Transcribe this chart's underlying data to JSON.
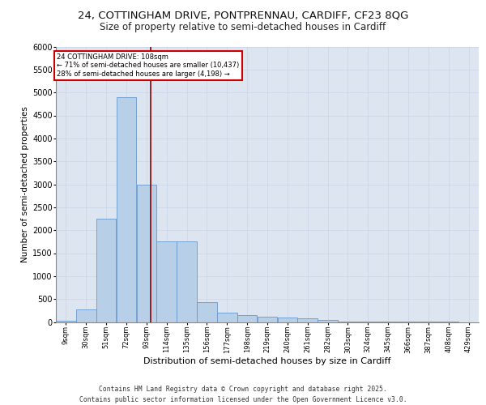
{
  "title1": "24, COTTINGHAM DRIVE, PONTPRENNAU, CARDIFF, CF23 8QG",
  "title2": "Size of property relative to semi-detached houses in Cardiff",
  "xlabel": "Distribution of semi-detached houses by size in Cardiff",
  "ylabel": "Number of semi-detached properties",
  "footer1": "Contains HM Land Registry data © Crown copyright and database right 2025.",
  "footer2": "Contains public sector information licensed under the Open Government Licence v3.0.",
  "bin_labels": [
    "9sqm",
    "30sqm",
    "51sqm",
    "72sqm",
    "93sqm",
    "114sqm",
    "135sqm",
    "156sqm",
    "177sqm",
    "198sqm",
    "219sqm",
    "240sqm",
    "261sqm",
    "282sqm",
    "303sqm",
    "324sqm",
    "345sqm",
    "366sqm",
    "387sqm",
    "408sqm",
    "429sqm"
  ],
  "bin_edges": [
    9,
    30,
    51,
    72,
    93,
    114,
    135,
    156,
    177,
    198,
    219,
    240,
    261,
    282,
    303,
    324,
    345,
    366,
    387,
    408,
    429
  ],
  "bar_heights": [
    30,
    280,
    2250,
    4900,
    3000,
    1750,
    1750,
    430,
    200,
    150,
    120,
    90,
    75,
    40,
    15,
    10,
    5,
    3,
    2,
    1,
    0
  ],
  "bar_color": "#b8cfe8",
  "bar_edge_color": "#6699cc",
  "property_sqm": 108,
  "vline_color": "#8b0000",
  "annotation_text": "24 COTTINGHAM DRIVE: 108sqm\n← 71% of semi-detached houses are smaller (10,437)\n28% of semi-detached houses are larger (4,198) →",
  "annotation_box_color": "#cc0000",
  "ylim": [
    0,
    6000
  ],
  "yticks": [
    0,
    500,
    1000,
    1500,
    2000,
    2500,
    3000,
    3500,
    4000,
    4500,
    5000,
    5500,
    6000
  ],
  "grid_color": "#c8d4e8",
  "bg_color": "#dde5f0",
  "title1_fontsize": 9.5,
  "title2_fontsize": 8.5,
  "footer_fontsize": 5.8
}
